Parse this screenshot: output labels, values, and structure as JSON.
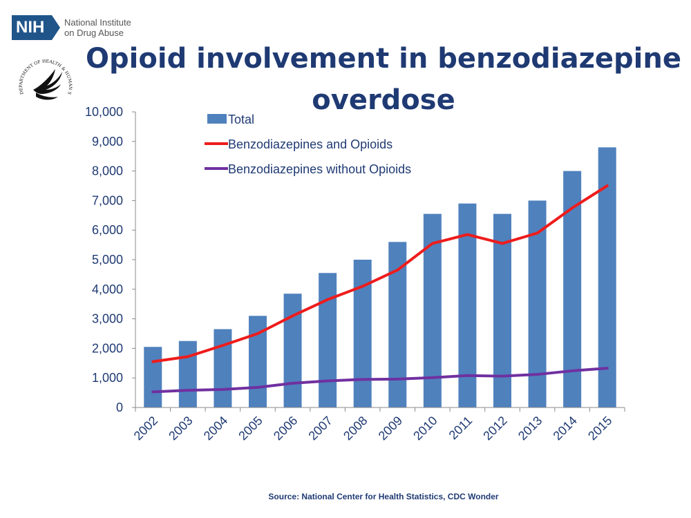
{
  "header": {
    "nih_logo_text": "NIH",
    "nih_org_line1": "National Institute",
    "nih_org_line2": "on Drug Abuse",
    "hhs_seal_text": "DEPARTMENT OF HEALTH & HUMAN SERVICES · USA"
  },
  "title_line1": "Opioid involvement in benzodiazepine",
  "title_line2": "overdose",
  "source": "Source: National Center for Health Statistics, CDC Wonder",
  "colors": {
    "title": "#1f3a73",
    "bar": "#4f81bd",
    "line_opioids": "#ee1c1c",
    "line_without": "#7030a0",
    "nih_blue": "#20558a"
  },
  "chart_data": {
    "type": "bar",
    "title": "Opioid involvement in benzodiazepine overdose",
    "categories": [
      "2002",
      "2003",
      "2004",
      "2005",
      "2006",
      "2007",
      "2008",
      "2009",
      "2010",
      "2011",
      "2012",
      "2013",
      "2014",
      "2015"
    ],
    "ylim": [
      0,
      10000
    ],
    "yticks": [
      0,
      1000,
      2000,
      3000,
      4000,
      5000,
      6000,
      7000,
      8000,
      9000,
      10000
    ],
    "ytick_labels": [
      "0",
      "1,000",
      "2,000",
      "3,000",
      "4,000",
      "5,000",
      "6,000",
      "7,000",
      "8,000",
      "9,000",
      "10,000"
    ],
    "grid": false,
    "legend_position": "top-left",
    "series": [
      {
        "name": "Total",
        "type": "bar",
        "values": [
          2050,
          2250,
          2650,
          3100,
          3850,
          4550,
          5000,
          5600,
          6550,
          6900,
          6550,
          7000,
          8000,
          8800
        ]
      },
      {
        "name": "Benzodiazepines and Opioids",
        "type": "line",
        "values": [
          1550,
          1720,
          2100,
          2500,
          3100,
          3650,
          4100,
          4650,
          5550,
          5850,
          5550,
          5900,
          6750,
          7500
        ]
      },
      {
        "name": "Benzodiazepines without Opioids",
        "type": "line",
        "values": [
          530,
          580,
          610,
          680,
          820,
          900,
          950,
          960,
          1010,
          1080,
          1060,
          1120,
          1240,
          1330
        ]
      }
    ]
  }
}
